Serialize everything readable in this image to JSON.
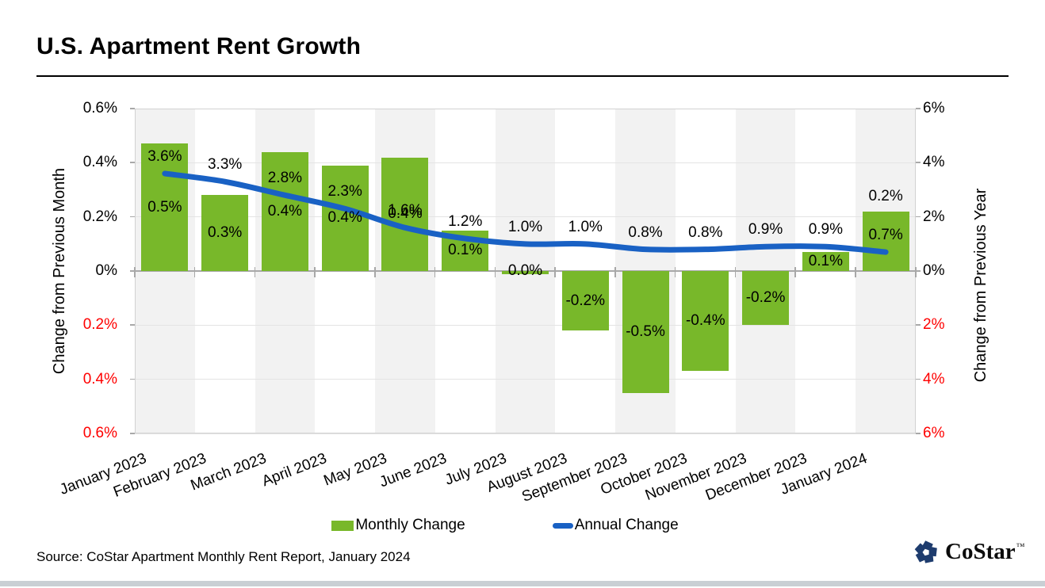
{
  "title": "U.S. Apartment Rent Growth",
  "source_note": "Source: CoStar Apartment Monthly Rent Report, January 2024",
  "logo": {
    "text": "CoStar",
    "tm": "™"
  },
  "legend": {
    "items": [
      {
        "label": "Monthly Change",
        "swatch": "bar"
      },
      {
        "label": "Annual Change",
        "swatch": "line"
      }
    ]
  },
  "left_axis": {
    "title": "Change from Previous Month",
    "tick_labels": [
      "0.6%",
      "0.4%",
      "0.2%",
      "0%",
      "0.2%",
      "0.4%",
      "0.6%"
    ],
    "range": [
      -0.6,
      0.6
    ],
    "step": 0.2
  },
  "right_axis": {
    "title": "Change from Previous Year",
    "tick_labels": [
      "6%",
      "4%",
      "2%",
      "0%",
      "2%",
      "4%",
      "6%"
    ],
    "range": [
      -6,
      6
    ],
    "step": 2
  },
  "colors": {
    "bar_green": "#78B82A",
    "line_blue": "#1961C4",
    "negative_axis_red": "#FF0000",
    "stripe_gray": "#F2F2F2",
    "gridline": "#E4E4E4",
    "zero_line": "#A8A8A8",
    "plot_border": "#D2D2D2",
    "bottom_strip": "#C9CFD4",
    "logo_navy": "#1E3C6E"
  },
  "chart_data": {
    "type": "bar+line",
    "title": "U.S. Apartment Rent Growth",
    "categories": [
      "January 2023",
      "February 2023",
      "March 2023",
      "April 2023",
      "May 2023",
      "June 2023",
      "July 2023",
      "August 2023",
      "September 2023",
      "October 2023",
      "November 2023",
      "December 2023",
      "January 2024"
    ],
    "series": [
      {
        "name": "Monthly Change",
        "type": "bar",
        "axis": "left",
        "unit": "%",
        "values": [
          0.5,
          0.3,
          0.4,
          0.4,
          0.4,
          0.1,
          0.0,
          -0.2,
          -0.5,
          -0.4,
          -0.2,
          0.1,
          0.2
        ],
        "labels": [
          "0.5%",
          "0.3%",
          "0.4%",
          "0.4%",
          "0.4%",
          "0.1%",
          "0.0%",
          "-0.2%",
          "-0.5%",
          "-0.4%",
          "-0.2%",
          "0.1%",
          "0.2%"
        ],
        "render_values": [
          0.47,
          0.28,
          0.44,
          0.39,
          0.42,
          0.15,
          -0.012,
          -0.22,
          -0.45,
          -0.37,
          -0.2,
          0.07,
          0.22
        ],
        "label_placement": [
          "center",
          "center",
          "center",
          "center",
          "center",
          "center",
          "axis",
          "center",
          "center",
          "center",
          "center",
          "center",
          "above"
        ]
      },
      {
        "name": "Annual Change",
        "type": "line",
        "axis": "right",
        "unit": "%",
        "values": [
          3.6,
          3.3,
          2.8,
          2.3,
          1.6,
          1.2,
          1.0,
          1.0,
          0.8,
          0.8,
          0.9,
          0.9,
          0.7
        ],
        "labels": [
          "3.6%",
          "3.3%",
          "2.8%",
          "2.3%",
          "1.6%",
          "1.2%",
          "1.0%",
          "1.0%",
          "0.8%",
          "0.8%",
          "0.9%",
          "0.9%",
          "0.7%"
        ]
      }
    ],
    "gridlines": true,
    "column_stripes": "alternating, first column shaded",
    "legend_position": "bottom",
    "ylim_left": [
      -0.6,
      0.6
    ],
    "ylim_right": [
      -6,
      6
    ]
  }
}
